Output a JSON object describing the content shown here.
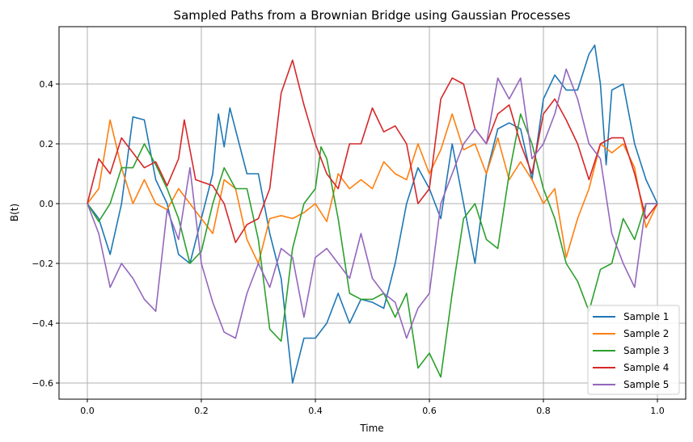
{
  "chart_data": {
    "type": "line",
    "title": "Sampled Paths from a Brownian Bridge using Gaussian Processes",
    "xlabel": "Time",
    "ylabel": "B(t)",
    "xlim": [
      -0.05,
      1.05
    ],
    "ylim": [
      -0.65,
      0.57
    ],
    "xticks": [
      0.0,
      0.2,
      0.4,
      0.6,
      0.8,
      1.0
    ],
    "xtick_labels": [
      "0.0",
      "0.2",
      "0.4",
      "0.6",
      "0.8",
      "1.0"
    ],
    "yticks": [
      -0.6,
      -0.4,
      -0.2,
      0.0,
      0.2,
      0.4
    ],
    "ytick_labels": [
      "−0.6",
      "−0.4",
      "−0.2",
      "0.0",
      "0.2",
      "0.4"
    ],
    "grid": true,
    "legend_position": "lower-right",
    "series": [
      {
        "name": "Sample 1",
        "color": "#1f77b4",
        "x": [
          0,
          0.02,
          0.04,
          0.06,
          0.08,
          0.1,
          0.12,
          0.14,
          0.16,
          0.18,
          0.2,
          0.22,
          0.23,
          0.24,
          0.25,
          0.28,
          0.3,
          0.32,
          0.34,
          0.36,
          0.38,
          0.4,
          0.42,
          0.44,
          0.46,
          0.48,
          0.5,
          0.52,
          0.54,
          0.56,
          0.58,
          0.6,
          0.62,
          0.64,
          0.66,
          0.68,
          0.7,
          0.72,
          0.74,
          0.76,
          0.78,
          0.8,
          0.82,
          0.84,
          0.86,
          0.88,
          0.89,
          0.9,
          0.91,
          0.92,
          0.94,
          0.96,
          0.98,
          1.0
        ],
        "y": [
          0,
          -0.05,
          -0.17,
          0.0,
          0.29,
          0.28,
          0.08,
          0.0,
          -0.17,
          -0.2,
          -0.05,
          0.1,
          0.3,
          0.19,
          0.32,
          0.1,
          0.1,
          -0.1,
          -0.25,
          -0.6,
          -0.45,
          -0.45,
          -0.4,
          -0.3,
          -0.4,
          -0.32,
          -0.33,
          -0.35,
          -0.2,
          0.0,
          0.12,
          0.05,
          -0.05,
          0.2,
          0.0,
          -0.2,
          0.1,
          0.25,
          0.27,
          0.25,
          0.08,
          0.35,
          0.43,
          0.38,
          0.38,
          0.5,
          0.53,
          0.4,
          0.13,
          0.38,
          0.4,
          0.2,
          0.08,
          0
        ]
      },
      {
        "name": "Sample 2",
        "color": "#ff7f0e",
        "x": [
          0,
          0.02,
          0.04,
          0.06,
          0.08,
          0.1,
          0.12,
          0.14,
          0.16,
          0.18,
          0.2,
          0.22,
          0.24,
          0.26,
          0.28,
          0.3,
          0.32,
          0.34,
          0.36,
          0.38,
          0.4,
          0.42,
          0.44,
          0.46,
          0.48,
          0.5,
          0.52,
          0.54,
          0.56,
          0.58,
          0.6,
          0.62,
          0.64,
          0.66,
          0.68,
          0.7,
          0.72,
          0.74,
          0.76,
          0.78,
          0.8,
          0.82,
          0.84,
          0.86,
          0.88,
          0.9,
          0.92,
          0.94,
          0.96,
          0.98,
          1.0
        ],
        "y": [
          0,
          0.05,
          0.28,
          0.12,
          0.0,
          0.08,
          0.0,
          -0.02,
          0.05,
          0.0,
          -0.05,
          -0.1,
          0.08,
          0.05,
          -0.12,
          -0.2,
          -0.05,
          -0.04,
          -0.05,
          -0.03,
          0.0,
          -0.06,
          0.1,
          0.05,
          0.08,
          0.05,
          0.14,
          0.1,
          0.08,
          0.2,
          0.1,
          0.18,
          0.3,
          0.18,
          0.2,
          0.1,
          0.22,
          0.08,
          0.14,
          0.08,
          0.0,
          0.05,
          -0.18,
          -0.05,
          0.05,
          0.2,
          0.17,
          0.2,
          0.12,
          -0.08,
          0
        ]
      },
      {
        "name": "Sample 3",
        "color": "#2ca02c",
        "x": [
          0,
          0.02,
          0.04,
          0.06,
          0.08,
          0.1,
          0.12,
          0.14,
          0.16,
          0.18,
          0.2,
          0.22,
          0.24,
          0.26,
          0.28,
          0.3,
          0.32,
          0.34,
          0.36,
          0.38,
          0.4,
          0.41,
          0.42,
          0.44,
          0.46,
          0.48,
          0.5,
          0.52,
          0.54,
          0.56,
          0.58,
          0.6,
          0.62,
          0.64,
          0.66,
          0.68,
          0.7,
          0.72,
          0.74,
          0.76,
          0.78,
          0.8,
          0.82,
          0.84,
          0.86,
          0.88,
          0.9,
          0.92,
          0.94,
          0.96,
          0.98,
          1.0
        ],
        "y": [
          0,
          -0.06,
          0.0,
          0.12,
          0.12,
          0.2,
          0.13,
          0.05,
          -0.05,
          -0.2,
          -0.16,
          0.0,
          0.12,
          0.05,
          0.05,
          -0.12,
          -0.42,
          -0.46,
          -0.15,
          0.0,
          0.05,
          0.19,
          0.15,
          -0.05,
          -0.3,
          -0.32,
          -0.32,
          -0.3,
          -0.38,
          -0.3,
          -0.55,
          -0.5,
          -0.58,
          -0.3,
          -0.05,
          0.0,
          -0.12,
          -0.15,
          0.1,
          0.3,
          0.2,
          0.05,
          -0.05,
          -0.2,
          -0.26,
          -0.36,
          -0.22,
          -0.2,
          -0.05,
          -0.12,
          0.0,
          0
        ]
      },
      {
        "name": "Sample 4",
        "color": "#d62728",
        "x": [
          0,
          0.02,
          0.04,
          0.06,
          0.08,
          0.1,
          0.12,
          0.14,
          0.16,
          0.17,
          0.19,
          0.22,
          0.24,
          0.26,
          0.28,
          0.3,
          0.32,
          0.34,
          0.36,
          0.38,
          0.4,
          0.42,
          0.44,
          0.46,
          0.48,
          0.5,
          0.52,
          0.54,
          0.56,
          0.58,
          0.6,
          0.62,
          0.64,
          0.66,
          0.68,
          0.7,
          0.72,
          0.74,
          0.76,
          0.78,
          0.8,
          0.82,
          0.84,
          0.86,
          0.88,
          0.9,
          0.92,
          0.94,
          0.96,
          0.98,
          1.0
        ],
        "y": [
          0,
          0.15,
          0.1,
          0.22,
          0.17,
          0.12,
          0.14,
          0.06,
          0.15,
          0.28,
          0.08,
          0.06,
          0.0,
          -0.13,
          -0.07,
          -0.05,
          0.05,
          0.37,
          0.48,
          0.33,
          0.2,
          0.1,
          0.05,
          0.2,
          0.2,
          0.32,
          0.24,
          0.26,
          0.2,
          0.0,
          0.05,
          0.35,
          0.42,
          0.4,
          0.25,
          0.2,
          0.3,
          0.33,
          0.2,
          0.1,
          0.3,
          0.35,
          0.28,
          0.2,
          0.08,
          0.2,
          0.22,
          0.22,
          0.1,
          -0.05,
          0
        ]
      },
      {
        "name": "Sample 5",
        "color": "#9467bd",
        "x": [
          0,
          0.02,
          0.04,
          0.06,
          0.08,
          0.1,
          0.12,
          0.14,
          0.16,
          0.18,
          0.2,
          0.22,
          0.24,
          0.26,
          0.28,
          0.3,
          0.32,
          0.34,
          0.36,
          0.38,
          0.4,
          0.42,
          0.44,
          0.46,
          0.48,
          0.5,
          0.52,
          0.54,
          0.56,
          0.58,
          0.6,
          0.62,
          0.64,
          0.66,
          0.68,
          0.7,
          0.72,
          0.74,
          0.76,
          0.78,
          0.8,
          0.82,
          0.84,
          0.86,
          0.88,
          0.9,
          0.92,
          0.94,
          0.96,
          0.98,
          1.0
        ],
        "y": [
          0,
          -0.1,
          -0.28,
          -0.2,
          -0.25,
          -0.32,
          -0.36,
          -0.02,
          -0.12,
          0.12,
          -0.2,
          -0.33,
          -0.43,
          -0.45,
          -0.3,
          -0.2,
          -0.28,
          -0.15,
          -0.18,
          -0.38,
          -0.18,
          -0.15,
          -0.2,
          -0.25,
          -0.1,
          -0.25,
          -0.3,
          -0.33,
          -0.45,
          -0.35,
          -0.3,
          0.0,
          0.1,
          0.2,
          0.25,
          0.2,
          0.42,
          0.35,
          0.42,
          0.15,
          0.2,
          0.3,
          0.45,
          0.35,
          0.2,
          0.15,
          -0.1,
          -0.2,
          -0.28,
          0.0,
          0
        ]
      }
    ]
  }
}
